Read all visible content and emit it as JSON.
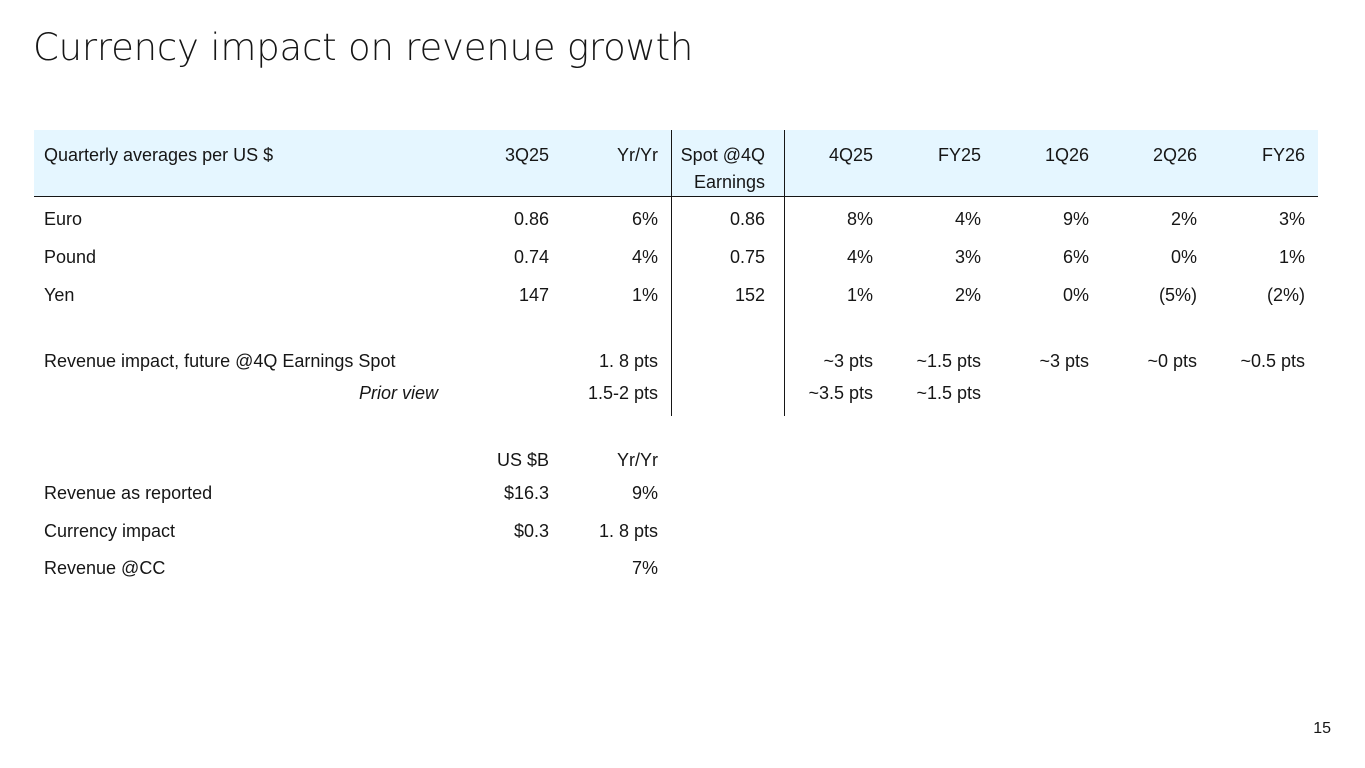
{
  "title": "Currency impact on revenue growth",
  "page_number": "15",
  "fx_table": {
    "headers": [
      "Quarterly averages per US $",
      "3Q25",
      "Yr/Yr",
      "Spot @4Q",
      "Earnings",
      "4Q25",
      "FY25",
      "1Q26",
      "2Q26",
      "FY26"
    ],
    "rows": [
      {
        "label": "Euro",
        "values": [
          "0.86",
          "6%",
          "0.86",
          "8%",
          "4%",
          "9%",
          "2%",
          "3%"
        ]
      },
      {
        "label": "Pound",
        "values": [
          "0.74",
          "4%",
          "0.75",
          "4%",
          "3%",
          "6%",
          "0%",
          "1%"
        ]
      },
      {
        "label": "Yen",
        "values": [
          "147",
          "1%",
          "152",
          "1%",
          "2%",
          "0%",
          "(5%)",
          "(2%)"
        ]
      }
    ],
    "impact_row": {
      "label": "Revenue impact, future @4Q Earnings Spot",
      "values": [
        "1. 8 pts",
        "~3 pts",
        "~1.5 pts",
        "~3 pts",
        "~0 pts",
        "~0.5 pts"
      ]
    },
    "prior_row": {
      "label": "Prior view",
      "values": [
        "1.5-2 pts",
        "~3.5 pts",
        "~1.5 pts"
      ]
    }
  },
  "revenue_table": {
    "headers": [
      "US $B",
      "Yr/Yr"
    ],
    "rows": [
      {
        "label": "Revenue as reported",
        "values": [
          "$16.3",
          "9%"
        ]
      },
      {
        "label": "Currency impact",
        "values": [
          "$0.3",
          "1. 8 pts"
        ]
      },
      {
        "label": "Revenue @CC",
        "values": [
          "",
          "7%"
        ]
      }
    ]
  }
}
